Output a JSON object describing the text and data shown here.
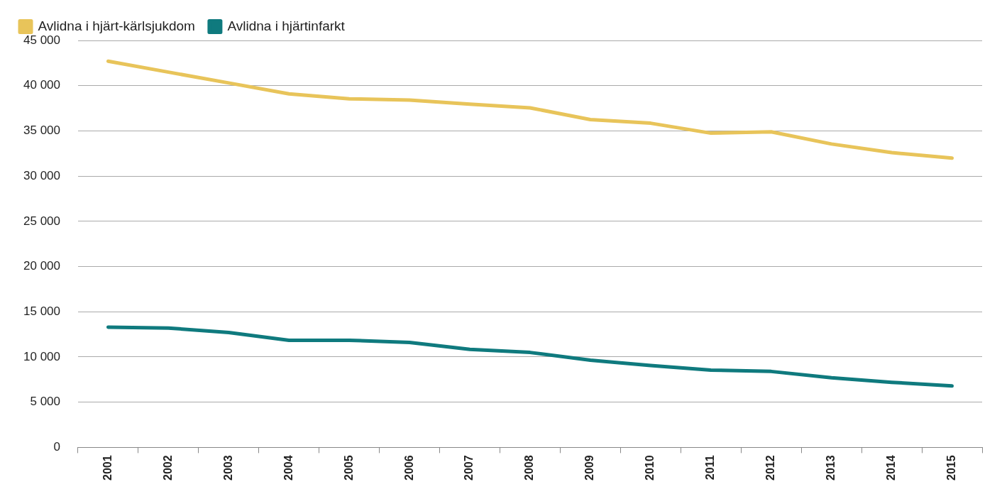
{
  "chart_data": {
    "type": "line",
    "categories": [
      "2001",
      "2002",
      "2003",
      "2004",
      "2005",
      "2006",
      "2007",
      "2008",
      "2009",
      "2010",
      "2011",
      "2012",
      "2013",
      "2014",
      "2015"
    ],
    "series": [
      {
        "name": "Avlidna i hjärt-kärlsjukdom",
        "color": "#e8c45a",
        "values": [
          42700,
          41500,
          40300,
          39100,
          38550,
          38400,
          37950,
          37550,
          36250,
          35850,
          34750,
          34900,
          33550,
          32600,
          32000
        ]
      },
      {
        "name": "Avlidna i hjärtinfarkt",
        "color": "#0f7a7e",
        "values": [
          13300,
          13200,
          12700,
          11850,
          11850,
          11600,
          10850,
          10500,
          9650,
          9050,
          8550,
          8400,
          7700,
          7200,
          6800
        ]
      }
    ],
    "ylim": [
      0,
      45000
    ],
    "yticks": [
      0,
      {
        "value": 5000,
        "label": "5 000"
      },
      {
        "value": 10000,
        "label": "10 000"
      },
      {
        "value": 15000,
        "label": "15 000"
      },
      {
        "value": 20000,
        "label": "20 000"
      },
      {
        "value": 25000,
        "label": "25 000"
      },
      {
        "value": 30000,
        "label": "30 000"
      },
      {
        "value": 35000,
        "label": "35 000"
      },
      {
        "value": 40000,
        "label": "40 000"
      },
      {
        "value": 45000,
        "label": "45 000"
      }
    ],
    "grid": "y",
    "legend": "top left",
    "marker": "none",
    "line_style": "solid"
  }
}
